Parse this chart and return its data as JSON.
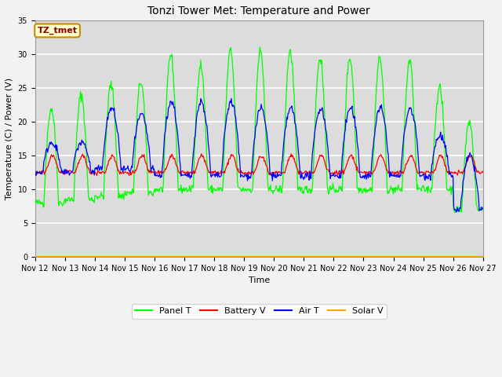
{
  "title": "Tonzi Tower Met: Temperature and Power",
  "xlabel": "Time",
  "ylabel": "Temperature (C) / Power (V)",
  "ylim": [
    0,
    35
  ],
  "yticks": [
    0,
    5,
    10,
    15,
    20,
    25,
    30,
    35
  ],
  "xtick_labels": [
    "Nov 12",
    "Nov 13",
    "Nov 14",
    "Nov 15",
    "Nov 16",
    "Nov 17",
    "Nov 18",
    "Nov 19",
    "Nov 20",
    "Nov 21",
    "Nov 22",
    "Nov 23",
    "Nov 24",
    "Nov 25",
    "Nov 26",
    "Nov 27"
  ],
  "annotation_text": "TZ_tmet",
  "annotation_color": "#8B0000",
  "annotation_bg": "#FFFFCC",
  "annotation_border": "#CC8800",
  "panel_color": "#00FF00",
  "battery_color": "#FF0000",
  "air_color": "#0000FF",
  "solar_color": "#FFA500",
  "legend_labels": [
    "Panel T",
    "Battery V",
    "Air T",
    "Solar V"
  ],
  "bg_color": "#DCDCDC",
  "grid_color": "#FFFFFF",
  "num_days": 15,
  "title_fontsize": 10,
  "label_fontsize": 8,
  "tick_fontsize": 7,
  "legend_fontsize": 8
}
